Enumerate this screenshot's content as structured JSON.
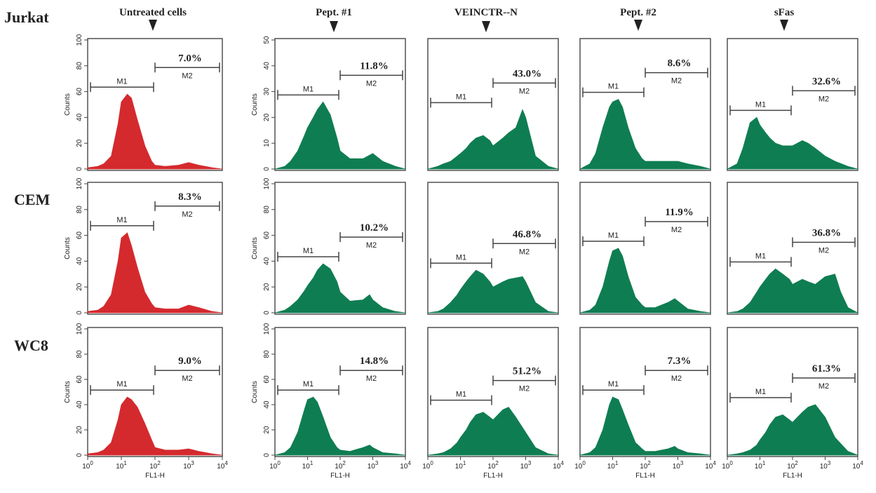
{
  "figure": {
    "row_labels": [
      "Jurkat",
      "CEM",
      "WC8"
    ],
    "column_labels": [
      "Untreated cells",
      "Pept. #1",
      "VEINCTR--N",
      "Pept. #2",
      "sFas"
    ],
    "colors": {
      "untreated": "#d42a2e",
      "treated": "#0f7d52",
      "axis": "#444444",
      "text": "#222222"
    }
  },
  "chart_data": [
    {
      "type": "area",
      "row": "Jurkat",
      "column": "Untreated cells",
      "xlabel": "",
      "ylabel": "Counts",
      "xscale": "log",
      "xlim": [
        1,
        10000
      ],
      "ylim": [
        0,
        100
      ],
      "yticks": [
        0,
        20,
        40,
        60,
        80,
        100
      ],
      "xticks": [],
      "gates": {
        "M1": [
          1,
          100
        ],
        "M2": [
          100,
          10000
        ]
      },
      "m2_percent": "7.0%",
      "x": [
        1,
        2,
        3,
        5,
        8,
        10,
        15,
        20,
        30,
        50,
        80,
        100,
        200,
        500,
        1000,
        2000,
        5000,
        10000
      ],
      "y": [
        1,
        2,
        4,
        10,
        35,
        52,
        58,
        55,
        38,
        18,
        6,
        3,
        2,
        3,
        5,
        3,
        1,
        0
      ]
    },
    {
      "type": "area",
      "row": "Jurkat",
      "column": "Pept. #1",
      "xlabel": "",
      "ylabel": "Counts",
      "xscale": "log",
      "xlim": [
        1,
        10000
      ],
      "ylim": [
        0,
        50
      ],
      "yticks": [
        0,
        10,
        20,
        30,
        40,
        50
      ],
      "xticks": [],
      "gates": {
        "M1": [
          1,
          100
        ],
        "M2": [
          100,
          10000
        ]
      },
      "m2_percent": "11.8%",
      "x": [
        1,
        2,
        3,
        5,
        8,
        10,
        15,
        20,
        30,
        50,
        80,
        100,
        200,
        500,
        1000,
        2000,
        5000,
        10000
      ],
      "y": [
        0,
        1,
        3,
        7,
        13,
        16,
        20,
        23,
        26,
        21,
        12,
        7,
        4,
        4,
        6,
        3,
        1,
        0
      ]
    },
    {
      "type": "area",
      "row": "Jurkat",
      "column": "VEINCTR--N",
      "xlabel": "",
      "ylabel": "",
      "xscale": "log",
      "xlim": [
        1,
        10000
      ],
      "ylim": [
        0,
        50
      ],
      "yticks": [],
      "xticks": [],
      "gates": {
        "M1": [
          1,
          100
        ],
        "M2": [
          100,
          10000
        ]
      },
      "m2_percent": "43.0%",
      "x": [
        1,
        2,
        3,
        5,
        8,
        10,
        15,
        20,
        30,
        50,
        80,
        100,
        200,
        300,
        500,
        800,
        1000,
        2000,
        5000,
        10000
      ],
      "y": [
        0,
        1,
        2,
        3,
        5,
        6,
        8,
        10,
        12,
        13,
        11,
        9,
        12,
        14,
        16,
        23,
        20,
        5,
        1,
        0
      ]
    },
    {
      "type": "area",
      "row": "Jurkat",
      "column": "Pept. #2",
      "xlabel": "",
      "ylabel": "",
      "xscale": "log",
      "xlim": [
        1,
        10000
      ],
      "ylim": [
        0,
        50
      ],
      "yticks": [],
      "xticks": [],
      "gates": {
        "M1": [
          1,
          100
        ],
        "M2": [
          100,
          10000
        ]
      },
      "m2_percent": "8.6%",
      "x": [
        1,
        2,
        3,
        5,
        8,
        10,
        15,
        20,
        30,
        50,
        80,
        100,
        200,
        500,
        1000,
        2000,
        5000,
        10000
      ],
      "y": [
        0,
        2,
        6,
        16,
        24,
        26,
        27,
        24,
        16,
        8,
        4,
        3,
        3,
        3,
        3,
        2,
        1,
        0
      ]
    },
    {
      "type": "area",
      "row": "Jurkat",
      "column": "sFas",
      "xlabel": "",
      "ylabel": "",
      "xscale": "log",
      "xlim": [
        1,
        10000
      ],
      "ylim": [
        0,
        50
      ],
      "yticks": [],
      "xticks": [],
      "gates": {
        "M1": [
          1,
          100
        ],
        "M2": [
          100,
          10000
        ]
      },
      "m2_percent": "32.6%",
      "x": [
        1,
        2,
        3,
        5,
        8,
        10,
        15,
        20,
        30,
        50,
        80,
        100,
        200,
        300,
        500,
        1000,
        2000,
        5000,
        10000
      ],
      "y": [
        0,
        2,
        8,
        18,
        20,
        17,
        14,
        12,
        10,
        9,
        9,
        9,
        11,
        10,
        8,
        5,
        3,
        1,
        0
      ]
    },
    {
      "type": "area",
      "row": "CEM",
      "column": "Untreated cells",
      "xlabel": "",
      "ylabel": "Counts",
      "xscale": "log",
      "xlim": [
        1,
        10000
      ],
      "ylim": [
        0,
        100
      ],
      "yticks": [
        0,
        20,
        40,
        60,
        80,
        100
      ],
      "xticks": [],
      "gates": {
        "M1": [
          1,
          100
        ],
        "M2": [
          100,
          10000
        ]
      },
      "m2_percent": "8.3%",
      "x": [
        1,
        2,
        3,
        5,
        8,
        10,
        15,
        20,
        30,
        50,
        80,
        100,
        200,
        500,
        1000,
        2000,
        5000,
        10000
      ],
      "y": [
        1,
        2,
        5,
        14,
        40,
        58,
        62,
        52,
        35,
        16,
        7,
        4,
        3,
        3,
        6,
        4,
        1,
        0
      ]
    },
    {
      "type": "area",
      "row": "CEM",
      "column": "Pept. #1",
      "xlabel": "",
      "ylabel": "Counts",
      "xscale": "log",
      "xlim": [
        1,
        10000
      ],
      "ylim": [
        0,
        100
      ],
      "yticks": [
        0,
        20,
        40,
        60,
        80,
        100
      ],
      "xticks": [],
      "gates": {
        "M1": [
          1,
          100
        ],
        "M2": [
          100,
          10000
        ]
      },
      "m2_percent": "10.2%",
      "x": [
        1,
        2,
        3,
        5,
        8,
        10,
        15,
        20,
        30,
        50,
        80,
        100,
        200,
        500,
        800,
        1000,
        2000,
        5000,
        10000
      ],
      "y": [
        0,
        2,
        5,
        10,
        17,
        21,
        27,
        33,
        38,
        34,
        24,
        16,
        9,
        10,
        14,
        10,
        4,
        1,
        0
      ]
    },
    {
      "type": "area",
      "row": "CEM",
      "column": "VEINCTR--N",
      "xlabel": "",
      "ylabel": "",
      "xscale": "log",
      "xlim": [
        1,
        10000
      ],
      "ylim": [
        0,
        100
      ],
      "yticks": [],
      "xticks": [],
      "gates": {
        "M1": [
          1,
          100
        ],
        "M2": [
          100,
          10000
        ]
      },
      "m2_percent": "46.8%",
      "x": [
        1,
        2,
        3,
        5,
        8,
        10,
        15,
        20,
        30,
        50,
        80,
        100,
        200,
        300,
        500,
        800,
        1000,
        2000,
        5000,
        10000
      ],
      "y": [
        0,
        1,
        3,
        8,
        14,
        18,
        24,
        28,
        33,
        30,
        24,
        20,
        24,
        26,
        27,
        28,
        24,
        8,
        1,
        0
      ]
    },
    {
      "type": "area",
      "row": "CEM",
      "column": "Pept. #2",
      "xlabel": "",
      "ylabel": "",
      "xscale": "log",
      "xlim": [
        1,
        10000
      ],
      "ylim": [
        0,
        100
      ],
      "yticks": [],
      "xticks": [],
      "gates": {
        "M1": [
          1,
          100
        ],
        "M2": [
          100,
          10000
        ]
      },
      "m2_percent": "11.9%",
      "x": [
        1,
        2,
        3,
        5,
        8,
        10,
        15,
        20,
        30,
        50,
        80,
        100,
        200,
        500,
        800,
        1000,
        2000,
        5000,
        10000
      ],
      "y": [
        0,
        2,
        6,
        20,
        40,
        48,
        50,
        44,
        28,
        12,
        6,
        4,
        4,
        8,
        11,
        9,
        3,
        1,
        0
      ]
    },
    {
      "type": "area",
      "row": "CEM",
      "column": "sFas",
      "xlabel": "",
      "ylabel": "",
      "xscale": "log",
      "xlim": [
        1,
        10000
      ],
      "ylim": [
        0,
        100
      ],
      "yticks": [],
      "xticks": [],
      "gates": {
        "M1": [
          1,
          100
        ],
        "M2": [
          100,
          10000
        ]
      },
      "m2_percent": "36.8%",
      "x": [
        1,
        2,
        3,
        5,
        8,
        10,
        15,
        20,
        30,
        50,
        80,
        100,
        200,
        300,
        500,
        1000,
        2000,
        3000,
        5000,
        10000
      ],
      "y": [
        0,
        1,
        3,
        8,
        16,
        20,
        26,
        30,
        34,
        30,
        26,
        22,
        26,
        24,
        22,
        28,
        30,
        16,
        4,
        0
      ]
    },
    {
      "type": "area",
      "row": "WC8",
      "column": "Untreated cells",
      "xlabel": "FL1-H",
      "ylabel": "Counts",
      "xscale": "log",
      "xlim": [
        1,
        10000
      ],
      "ylim": [
        0,
        100
      ],
      "yticks": [
        0,
        20,
        40,
        60,
        80,
        100
      ],
      "xticks": [
        "10^0",
        "10^1",
        "10^2",
        "10^3",
        "10^4"
      ],
      "gates": {
        "M1": [
          1,
          100
        ],
        "M2": [
          100,
          10000
        ]
      },
      "m2_percent": "9.0%",
      "x": [
        1,
        2,
        3,
        5,
        8,
        10,
        15,
        20,
        30,
        50,
        80,
        100,
        200,
        500,
        1000,
        2000,
        5000,
        10000
      ],
      "y": [
        1,
        2,
        4,
        10,
        28,
        40,
        46,
        44,
        38,
        25,
        12,
        6,
        4,
        4,
        5,
        3,
        1,
        0
      ]
    },
    {
      "type": "area",
      "row": "WC8",
      "column": "Pept. #1",
      "xlabel": "FL1-H",
      "ylabel": "Counts",
      "xscale": "log",
      "xlim": [
        1,
        10000
      ],
      "ylim": [
        0,
        100
      ],
      "yticks": [
        0,
        20,
        40,
        60,
        80,
        100
      ],
      "xticks": [
        "10^0",
        "10^1",
        "10^2",
        "10^3",
        "10^4"
      ],
      "gates": {
        "M1": [
          1,
          100
        ],
        "M2": [
          100,
          10000
        ]
      },
      "m2_percent": "14.8%",
      "x": [
        1,
        2,
        3,
        5,
        8,
        10,
        15,
        20,
        30,
        50,
        80,
        100,
        200,
        500,
        800,
        1000,
        2000,
        5000,
        10000
      ],
      "y": [
        0,
        2,
        6,
        18,
        36,
        44,
        46,
        42,
        30,
        14,
        6,
        4,
        3,
        6,
        8,
        6,
        2,
        1,
        0
      ]
    },
    {
      "type": "area",
      "row": "WC8",
      "column": "VEINCTR--N",
      "xlabel": "FL1-H",
      "ylabel": "",
      "xscale": "log",
      "xlim": [
        1,
        10000
      ],
      "ylim": [
        0,
        100
      ],
      "yticks": [],
      "xticks": [
        "10^0",
        "10^1",
        "10^2",
        "10^3",
        "10^4"
      ],
      "gates": {
        "M1": [
          1,
          100
        ],
        "M2": [
          100,
          10000
        ]
      },
      "m2_percent": "51.2%",
      "x": [
        1,
        2,
        3,
        5,
        8,
        10,
        15,
        20,
        30,
        50,
        80,
        100,
        200,
        300,
        500,
        1000,
        2000,
        5000,
        10000
      ],
      "y": [
        0,
        1,
        2,
        5,
        10,
        14,
        20,
        26,
        32,
        34,
        30,
        28,
        36,
        38,
        30,
        18,
        6,
        1,
        0
      ]
    },
    {
      "type": "area",
      "row": "WC8",
      "column": "Pept. #2",
      "xlabel": "FL1-H",
      "ylabel": "",
      "xscale": "log",
      "xlim": [
        1,
        10000
      ],
      "ylim": [
        0,
        100
      ],
      "yticks": [],
      "xticks": [
        "10^0",
        "10^1",
        "10^2",
        "10^3",
        "10^4"
      ],
      "gates": {
        "M1": [
          1,
          100
        ],
        "M2": [
          100,
          10000
        ]
      },
      "m2_percent": "7.3%",
      "x": [
        1,
        2,
        3,
        5,
        8,
        10,
        15,
        20,
        30,
        50,
        80,
        100,
        200,
        500,
        800,
        1000,
        2000,
        5000,
        10000
      ],
      "y": [
        0,
        2,
        6,
        20,
        40,
        46,
        44,
        36,
        24,
        10,
        5,
        3,
        3,
        5,
        7,
        5,
        2,
        1,
        0
      ]
    },
    {
      "type": "area",
      "row": "WC8",
      "column": "sFas",
      "xlabel": "FL1-H",
      "ylabel": "",
      "xscale": "log",
      "xlim": [
        1,
        10000
      ],
      "ylim": [
        0,
        100
      ],
      "yticks": [],
      "xticks": [
        "10^0",
        "10^1",
        "10^2",
        "10^3",
        "10^4"
      ],
      "gates": {
        "M1": [
          1,
          100
        ],
        "M2": [
          100,
          10000
        ]
      },
      "m2_percent": "61.3%",
      "x": [
        1,
        2,
        3,
        5,
        8,
        10,
        15,
        20,
        30,
        50,
        80,
        100,
        200,
        300,
        500,
        1000,
        2000,
        5000,
        10000
      ],
      "y": [
        0,
        1,
        2,
        4,
        8,
        12,
        18,
        24,
        30,
        32,
        28,
        26,
        34,
        38,
        40,
        30,
        14,
        3,
        0
      ]
    }
  ]
}
